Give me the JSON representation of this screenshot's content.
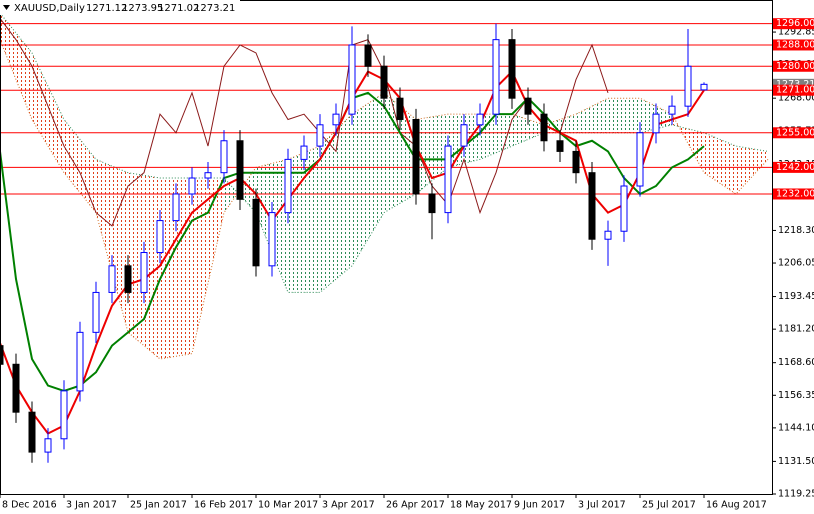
{
  "chart_data": {
    "type": "candlestick",
    "title": "XAUUSD,Daily",
    "header_values": [
      1271.12,
      1273.95,
      1271.02,
      1273.21
    ],
    "xlim": [
      0,
      193
    ],
    "ylim": [
      1119.25,
      1304.9
    ],
    "xticks": [
      {
        "value": 0,
        "label": "8 Dec 2016"
      },
      {
        "value": 16,
        "label": "3 Jan 2017"
      },
      {
        "value": 32,
        "label": "25 Jan 2017"
      },
      {
        "value": 48,
        "label": "16 Feb 2017"
      },
      {
        "value": 64,
        "label": "10 Mar 2017"
      },
      {
        "value": 80,
        "label": "3 Apr 2017"
      },
      {
        "value": 96,
        "label": "26 Apr 2017"
      },
      {
        "value": 112,
        "label": "18 May 2017"
      },
      {
        "value": 128,
        "label": "9 Jun 2017"
      },
      {
        "value": 144,
        "label": "3 Jul 2017"
      },
      {
        "value": 160,
        "label": "25 Jul 2017"
      },
      {
        "value": 176,
        "label": "16 Aug 2017"
      }
    ],
    "yticks": [
      {
        "value": 1292.85,
        "label": "1292.85"
      },
      {
        "value": 1280.6,
        "label": "1280.60"
      },
      {
        "value": 1268,
        "label": "1268.00"
      },
      {
        "value": 1255.75,
        "label": "1255.75"
      },
      {
        "value": 1243.15,
        "label": "1243.15"
      },
      {
        "value": 1230.9,
        "label": "1230.90"
      },
      {
        "value": 1218.3,
        "label": "1218.30"
      },
      {
        "value": 1206.05,
        "label": "1206.05"
      },
      {
        "value": 1193.45,
        "label": "1193.45"
      },
      {
        "value": 1181.2,
        "label": "1181.20"
      },
      {
        "value": 1168.6,
        "label": "1168.60"
      },
      {
        "value": 1156.35,
        "label": "1156.35"
      },
      {
        "value": 1144.1,
        "label": "1144.10"
      },
      {
        "value": 1131.5,
        "label": "1131.50"
      },
      {
        "value": 1119.25,
        "label": "1119.25"
      }
    ],
    "levels": [
      {
        "value": 1296,
        "label": "1296.00"
      },
      {
        "value": 1288,
        "label": "1288.00"
      },
      {
        "value": 1280,
        "label": "1280.00"
      },
      {
        "value": 1271,
        "label": "1271.00"
      },
      {
        "value": 1255,
        "label": "1255.00"
      },
      {
        "value": 1242,
        "label": "1242.00"
      },
      {
        "value": 1232,
        "label": "1232.00"
      }
    ],
    "level_color": "#ff0000",
    "up_color": "#0000ff",
    "down_color": "#000000",
    "candles": {
      "x": [
        0,
        4,
        8,
        12,
        16,
        20,
        24,
        28,
        32,
        36,
        40,
        44,
        48,
        52,
        56,
        60,
        64,
        68,
        72,
        76,
        80,
        84,
        88,
        92,
        96,
        100,
        104,
        108,
        112,
        116,
        120,
        124,
        128,
        132,
        136,
        140,
        144,
        148,
        152,
        156,
        160,
        164,
        168,
        172,
        176
      ],
      "open": [
        1175,
        1168,
        1150,
        1135,
        1140,
        1158,
        1180,
        1195,
        1205,
        1195,
        1210,
        1222,
        1232,
        1238,
        1240,
        1252,
        1230,
        1205,
        1225,
        1245,
        1250,
        1258,
        1262,
        1288,
        1280,
        1268,
        1260,
        1232,
        1225,
        1250,
        1258,
        1262,
        1290,
        1268,
        1262,
        1252,
        1248,
        1240,
        1215,
        1218,
        1235,
        1255,
        1262,
        1265,
        1271.12
      ],
      "high": [
        1179,
        1172,
        1154,
        1144,
        1162,
        1184,
        1199,
        1209,
        1209,
        1214,
        1226,
        1236,
        1242,
        1244,
        1256,
        1256,
        1234,
        1229,
        1249,
        1254,
        1262,
        1266,
        1295,
        1292,
        1284,
        1272,
        1264,
        1236,
        1254,
        1262,
        1266,
        1296,
        1294,
        1272,
        1266,
        1256,
        1252,
        1244,
        1222,
        1239,
        1259,
        1266,
        1269,
        1294,
        1273.95
      ],
      "low": [
        1164,
        1146,
        1131,
        1131,
        1136,
        1154,
        1176,
        1191,
        1191,
        1191,
        1206,
        1218,
        1228,
        1234,
        1236,
        1226,
        1201,
        1201,
        1221,
        1241,
        1246,
        1254,
        1258,
        1276,
        1264,
        1256,
        1228,
        1215,
        1221,
        1246,
        1254,
        1258,
        1264,
        1258,
        1248,
        1244,
        1236,
        1211,
        1205,
        1214,
        1231,
        1251,
        1258,
        1261,
        1271.02
      ],
      "close": [
        1168,
        1150,
        1135,
        1140,
        1158,
        1180,
        1195,
        1205,
        1195,
        1210,
        1222,
        1232,
        1238,
        1240,
        1252,
        1230,
        1205,
        1225,
        1245,
        1250,
        1258,
        1262,
        1288,
        1280,
        1268,
        1260,
        1232,
        1225,
        1250,
        1258,
        1262,
        1290,
        1268,
        1262,
        1252,
        1248,
        1240,
        1215,
        1218,
        1235,
        1255,
        1262,
        1265,
        1280,
        1273.21
      ]
    },
    "tenkan": {
      "color": "#ee0000",
      "values": [
        1176,
        1160,
        1150,
        1142,
        1145,
        1158,
        1175,
        1190,
        1198,
        1200,
        1205,
        1215,
        1225,
        1230,
        1235,
        1238,
        1232,
        1222,
        1230,
        1238,
        1245,
        1255,
        1268,
        1278,
        1275,
        1268,
        1250,
        1238,
        1240,
        1250,
        1258,
        1272,
        1278,
        1265,
        1258,
        1255,
        1252,
        1232,
        1225,
        1228,
        1240,
        1258,
        1260,
        1262,
        1271
      ]
    },
    "kijun": {
      "color": "#008000",
      "values": [
        1248,
        1200,
        1170,
        1160,
        1158,
        1160,
        1165,
        1175,
        1180,
        1185,
        1200,
        1212,
        1222,
        1225,
        1238,
        1240,
        1240,
        1240,
        1240,
        1240,
        1245,
        1255,
        1268,
        1270,
        1265,
        1255,
        1245,
        1245,
        1245,
        1250,
        1255,
        1262,
        1262,
        1268,
        1262,
        1255,
        1250,
        1252,
        1248,
        1238,
        1232,
        1235,
        1242,
        1245,
        1250
      ]
    },
    "chikou": {
      "color": "#8b1a1a",
      "x": [
        0,
        4,
        8,
        12,
        16,
        20,
        24,
        28,
        32,
        36,
        40,
        44,
        48,
        52,
        56,
        60,
        64,
        68,
        72,
        76,
        80,
        84,
        88,
        92,
        96,
        100,
        104,
        108,
        112,
        116,
        120,
        124,
        128,
        132,
        136,
        140,
        144,
        148,
        152
      ],
      "values": [
        1298,
        1290,
        1280,
        1265,
        1250,
        1240,
        1225,
        1220,
        1235,
        1240,
        1262,
        1255,
        1270,
        1250,
        1280,
        1288,
        1285,
        1270,
        1260,
        1262,
        1255,
        1248,
        1288,
        1290,
        1278,
        1255,
        1250,
        1235,
        1228,
        1245,
        1225,
        1240,
        1260,
        1268,
        1262,
        1255,
        1275,
        1288,
        1270
      ]
    },
    "span_a": {
      "color": "#d2691e",
      "x": [
        0,
        8,
        16,
        24,
        32,
        40,
        48,
        56,
        64,
        72,
        80,
        88,
        96,
        104,
        112,
        120,
        128,
        136,
        144,
        152,
        160,
        168,
        176,
        184,
        192
      ],
      "values": [
        1290,
        1260,
        1240,
        1225,
        1180,
        1170,
        1172,
        1225,
        1242,
        1245,
        1250,
        1262,
        1270,
        1260,
        1262,
        1262,
        1262,
        1258,
        1262,
        1268,
        1268,
        1262,
        1240,
        1232,
        1245
      ]
    },
    "span_b": {
      "color": "#2e8b57",
      "x": [
        0,
        8,
        16,
        24,
        32,
        40,
        48,
        56,
        64,
        72,
        80,
        88,
        96,
        104,
        112,
        120,
        128,
        136,
        144,
        152,
        160,
        168,
        176,
        184,
        192
      ],
      "values": [
        1300,
        1285,
        1260,
        1245,
        1240,
        1238,
        1238,
        1238,
        1225,
        1195,
        1195,
        1205,
        1225,
        1232,
        1242,
        1245,
        1250,
        1255,
        1255,
        1255,
        1255,
        1258,
        1255,
        1250,
        1248
      ]
    },
    "cloud_colors": {
      "bull": "#2e8b57",
      "bear": "#e0401a"
    }
  }
}
